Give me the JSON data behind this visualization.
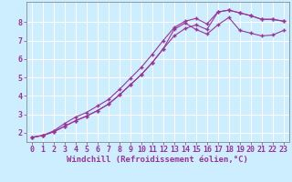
{
  "background_color": "#cceeff",
  "grid_color": "#ffffff",
  "line_color": "#993399",
  "xlabel": "Windchill (Refroidissement éolien,°C)",
  "xlim_min": -0.5,
  "xlim_max": 23.5,
  "ylim_min": 1.5,
  "ylim_max": 9.1,
  "xticks": [
    0,
    1,
    2,
    3,
    4,
    5,
    6,
    7,
    8,
    9,
    10,
    11,
    12,
    13,
    14,
    15,
    16,
    17,
    18,
    19,
    20,
    21,
    22,
    23
  ],
  "yticks": [
    2,
    3,
    4,
    5,
    6,
    7,
    8
  ],
  "line1_x": [
    0,
    1,
    2,
    3,
    4,
    5,
    6,
    7,
    8,
    9,
    10,
    11,
    12,
    13,
    14,
    15,
    16,
    17,
    18,
    19,
    20,
    21,
    22,
    23
  ],
  "line1_y": [
    1.75,
    1.85,
    2.1,
    2.5,
    2.85,
    3.1,
    3.45,
    3.8,
    4.35,
    4.95,
    5.55,
    6.25,
    7.0,
    7.7,
    8.05,
    8.2,
    7.9,
    8.55,
    8.65,
    8.5,
    8.35,
    8.15,
    8.15,
    8.05
  ],
  "line2_x": [
    0,
    1,
    2,
    3,
    4,
    5,
    6,
    7,
    8,
    9,
    10,
    11,
    12,
    13,
    14,
    15,
    16,
    17,
    18,
    19,
    20,
    21,
    22,
    23
  ],
  "line2_y": [
    1.75,
    1.85,
    2.05,
    2.35,
    2.65,
    2.9,
    3.2,
    3.55,
    4.05,
    4.6,
    5.15,
    5.8,
    6.55,
    7.25,
    7.65,
    7.85,
    7.6,
    8.55,
    8.65,
    8.5,
    8.35,
    8.15,
    8.15,
    8.05
  ],
  "line3_x": [
    0,
    1,
    2,
    3,
    4,
    5,
    6,
    7,
    8,
    9,
    10,
    11,
    12,
    13,
    14,
    15,
    16,
    17,
    18,
    19,
    20,
    21,
    22,
    23
  ],
  "line3_y": [
    1.75,
    1.85,
    2.05,
    2.35,
    2.65,
    2.9,
    3.2,
    3.55,
    4.05,
    4.6,
    5.15,
    5.8,
    6.55,
    7.6,
    7.95,
    7.6,
    7.35,
    7.85,
    8.25,
    7.55,
    7.4,
    7.25,
    7.3,
    7.55
  ],
  "marker": "+",
  "markersize": 3,
  "linewidth": 0.8,
  "xlabel_fontsize": 6.5,
  "tick_fontsize": 6
}
